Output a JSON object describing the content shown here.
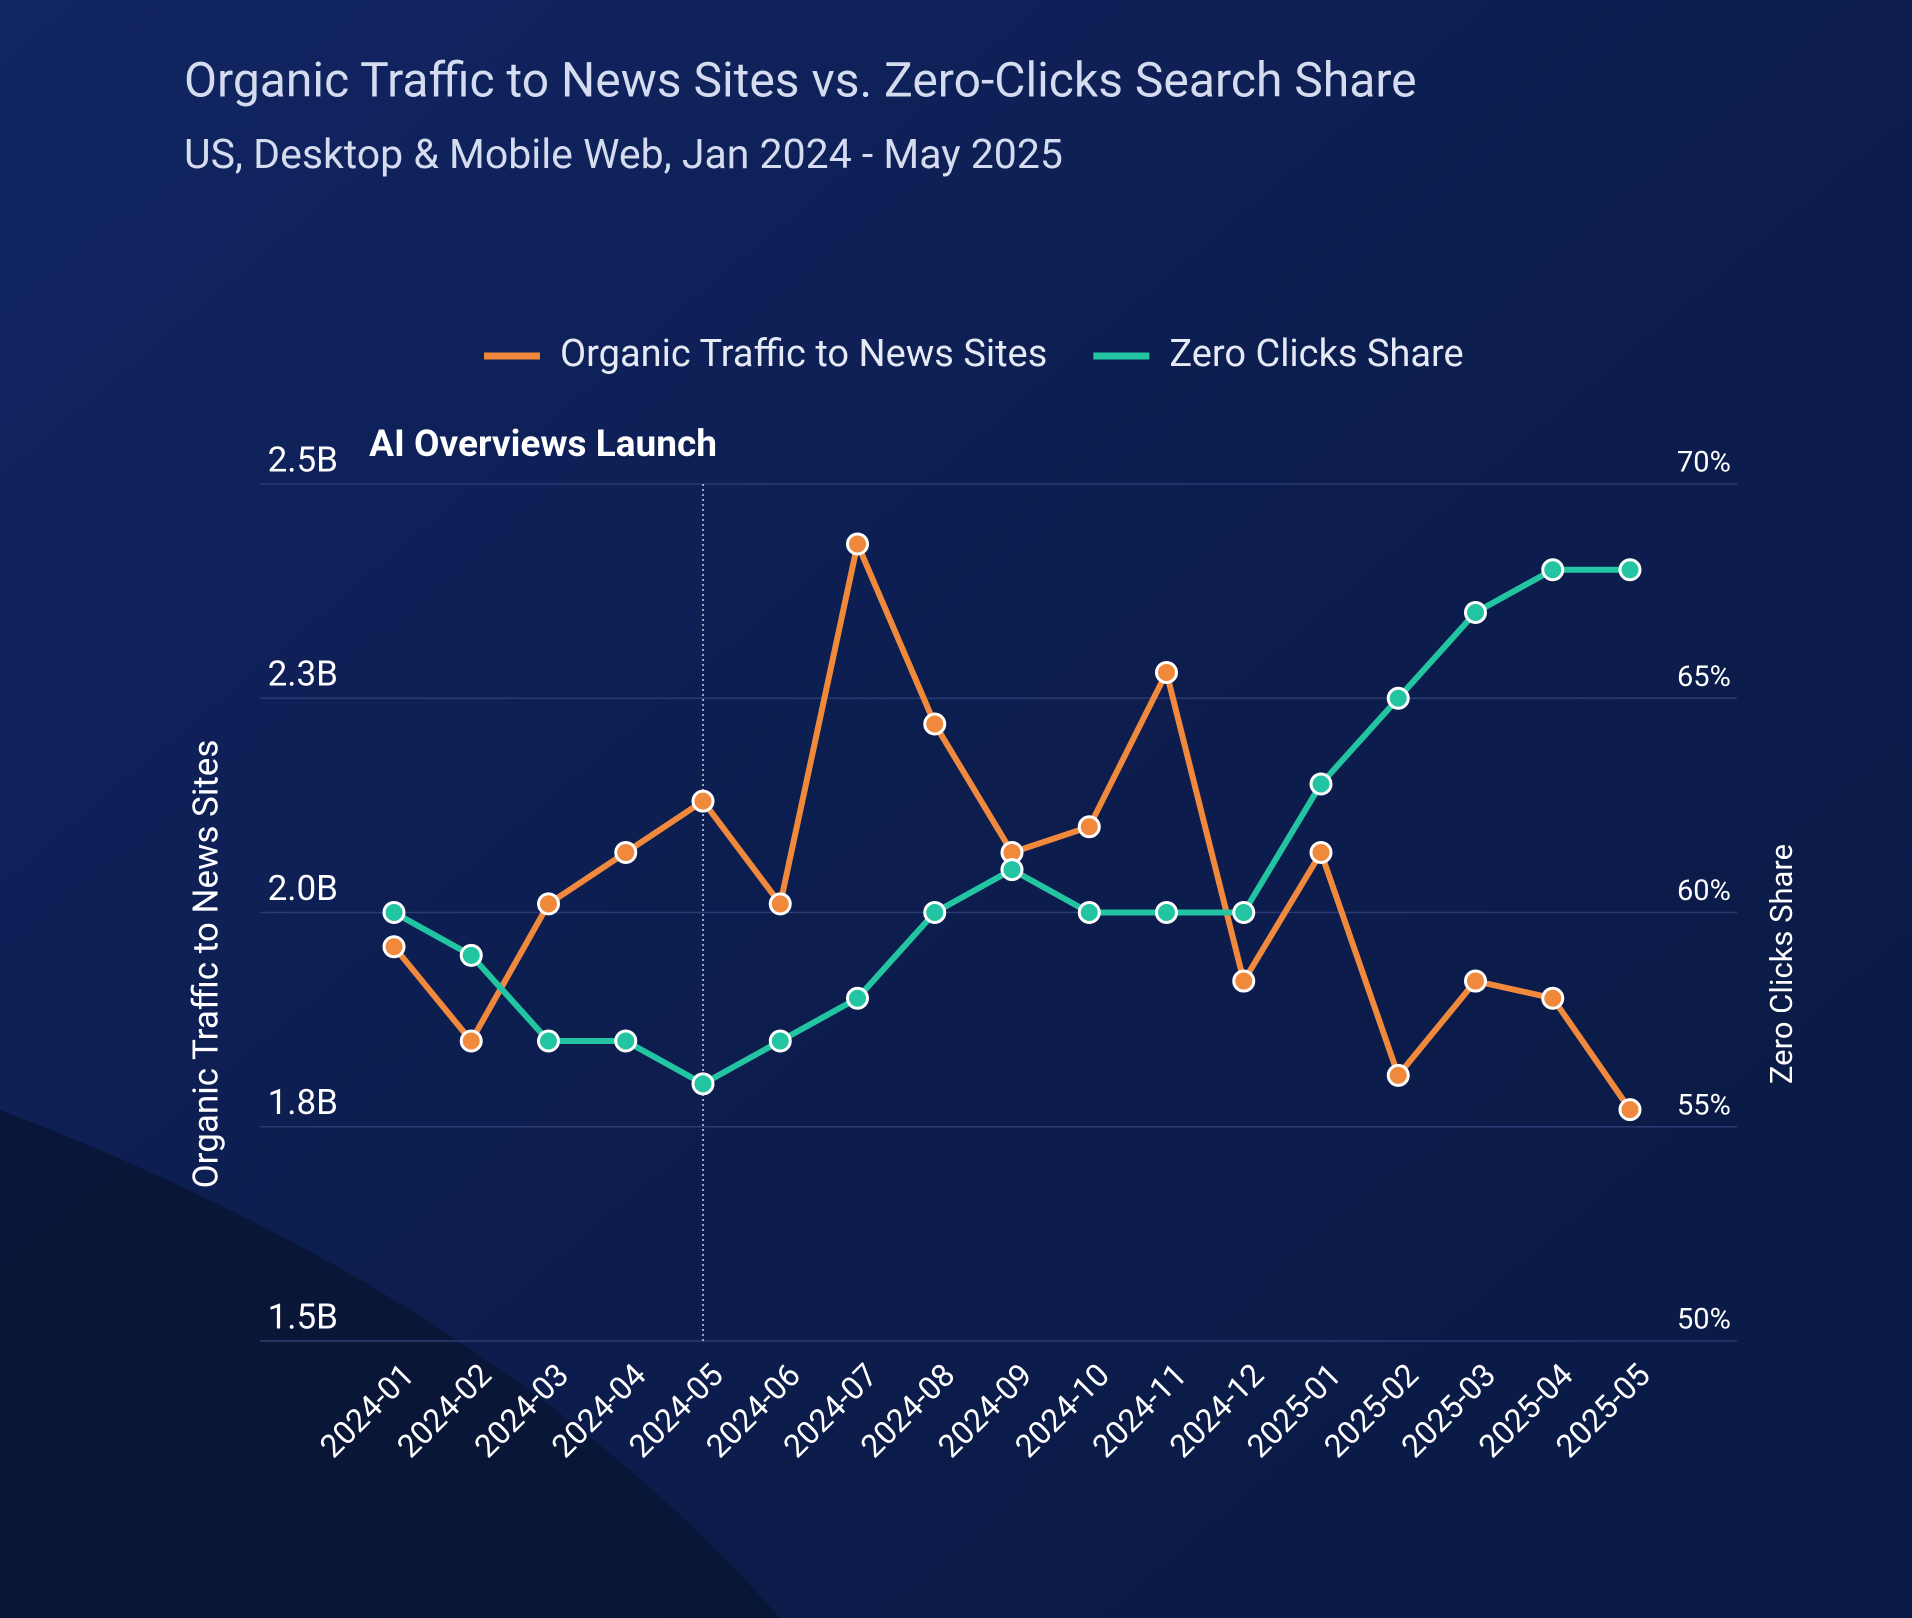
{
  "chart_data": {
    "type": "line",
    "title": "Organic Traffic to News Sites vs. Zero-Clicks Search Share",
    "subtitle": "US, Desktop & Mobile Web, Jan 2024 - May 2025",
    "ylabel": "Organic Traffic to News Sites",
    "y2label": "Zero Clicks Share",
    "categories": [
      "2024-01",
      "2024-02",
      "2024-03",
      "2024-04",
      "2024-05",
      "2024-06",
      "2024-07",
      "2024-08",
      "2024-09",
      "2024-10",
      "2024-11",
      "2024-12",
      "2025-01",
      "2025-02",
      "2025-03",
      "2025-04",
      "2025-05"
    ],
    "series": [
      {
        "name": "Organic Traffic to News Sites",
        "color": "#f0893c",
        "values": [
          1.96,
          1.85,
          2.01,
          2.07,
          2.13,
          2.01,
          2.43,
          2.22,
          2.07,
          2.1,
          2.28,
          1.92,
          2.07,
          1.81,
          1.92,
          1.9,
          1.77
        ]
      },
      {
        "name": "Zero Clicks Share",
        "color": "#23c4a1",
        "axis": "y2",
        "values": [
          60,
          59,
          57,
          57,
          56,
          57,
          58,
          60,
          61,
          60,
          60,
          60,
          63,
          65,
          67,
          68,
          68
        ]
      }
    ],
    "ylim": [
      1.5,
      2.5
    ],
    "yticks": [
      {
        "value": 1.5,
        "label": "1.5B"
      },
      {
        "value": 1.75,
        "label": "1.8B"
      },
      {
        "value": 2.0,
        "label": "2.0B"
      },
      {
        "value": 2.25,
        "label": "2.3B"
      },
      {
        "value": 2.5,
        "label": "2.5B"
      }
    ],
    "y2lim": [
      50,
      70
    ],
    "y2ticks": [
      {
        "value": 50,
        "label": "50%"
      },
      {
        "value": 55,
        "label": "55%"
      },
      {
        "value": 60,
        "label": "60%"
      },
      {
        "value": 65,
        "label": "65%"
      },
      {
        "value": 70,
        "label": "70%"
      }
    ],
    "grid": true,
    "legend": "top",
    "annotation": {
      "text": "AI Overviews Launch",
      "x": "2024-05"
    }
  }
}
